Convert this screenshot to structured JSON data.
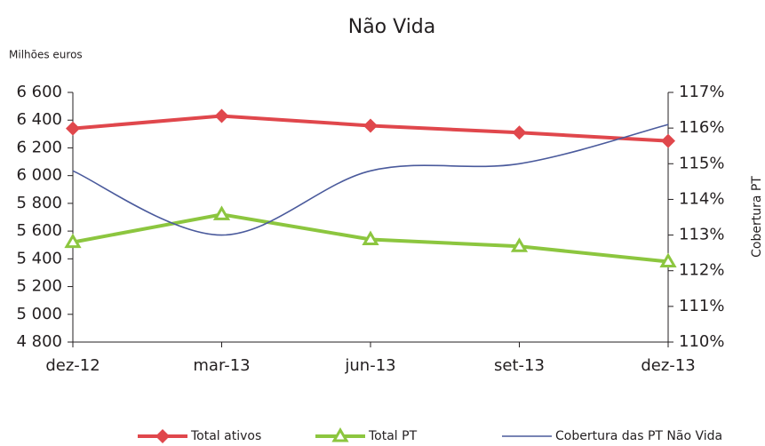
{
  "chart_data": {
    "type": "line",
    "title": "Não Vida",
    "y_label": "Milhões euros",
    "y2_label": "Cobertura PT",
    "categories": [
      "dez-12",
      "mar-13",
      "jun-13",
      "set-13",
      "dez-13"
    ],
    "ylim": [
      4800,
      6600
    ],
    "yticks": [
      {
        "value": 4800,
        "label": "4 800"
      },
      {
        "value": 5000,
        "label": "5 000"
      },
      {
        "value": 5200,
        "label": "5 200"
      },
      {
        "value": 5400,
        "label": "5 400"
      },
      {
        "value": 5600,
        "label": "5 600"
      },
      {
        "value": 5800,
        "label": "5 800"
      },
      {
        "value": 6000,
        "label": "6 000"
      },
      {
        "value": 6200,
        "label": "6 200"
      },
      {
        "value": 6400,
        "label": "6 400"
      },
      {
        "value": 6600,
        "label": "6 600"
      }
    ],
    "y2lim": [
      110,
      117
    ],
    "y2ticks": [
      {
        "value": 110,
        "label": "110%"
      },
      {
        "value": 111,
        "label": "111%"
      },
      {
        "value": 112,
        "label": "112%"
      },
      {
        "value": 113,
        "label": "113%"
      },
      {
        "value": 114,
        "label": "114%"
      },
      {
        "value": 115,
        "label": "115%"
      },
      {
        "value": 116,
        "label": "116%"
      },
      {
        "value": 117,
        "label": "117%"
      }
    ],
    "series": [
      {
        "name": "Total ativos",
        "color": "#e0474c",
        "marker": "diamond",
        "values": [
          6340,
          6430,
          6360,
          6310,
          6250
        ]
      },
      {
        "name": "Total PT",
        "color": "#8cc63f",
        "marker": "triangle",
        "values": [
          5520,
          5720,
          5540,
          5490,
          5380
        ]
      },
      {
        "name": "Cobertura das PT Não Vida",
        "color": "#4a5a9c",
        "marker": "none",
        "smooth": true,
        "axis": "y2",
        "values": [
          114.8,
          113.0,
          114.8,
          115.0,
          116.1
        ]
      }
    ]
  }
}
